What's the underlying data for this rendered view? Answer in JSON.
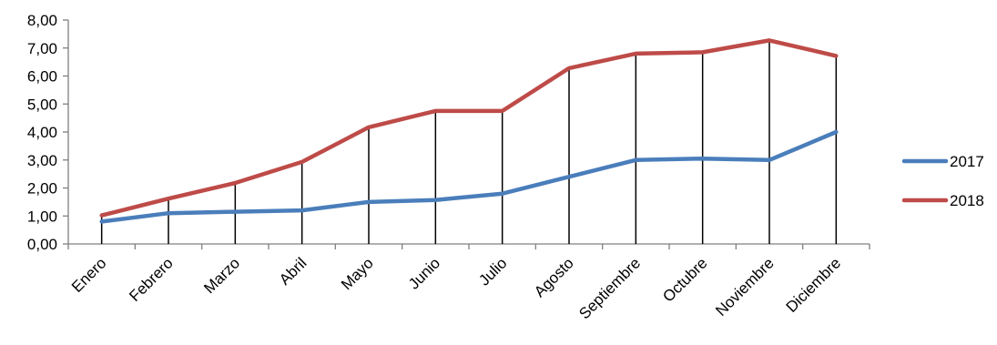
{
  "chart_data": {
    "type": "line",
    "categories": [
      "Enero",
      "Febrero",
      "Marzo",
      "Abril",
      "Mayo",
      "Junio",
      "Julio",
      "Agosto",
      "Septiembre",
      "Octubre",
      "Noviembre",
      "Diciembre"
    ],
    "series": [
      {
        "name": "2017",
        "color": "#4a7ebb",
        "values": [
          0.8,
          1.1,
          1.15,
          1.2,
          1.5,
          1.57,
          1.8,
          2.4,
          3.0,
          3.05,
          3.0,
          4.0
        ]
      },
      {
        "name": "2018",
        "color": "#be4b48",
        "values": [
          1.02,
          1.62,
          2.18,
          2.93,
          4.17,
          4.75,
          4.75,
          6.28,
          6.8,
          6.85,
          7.27,
          6.72
        ]
      }
    ],
    "yticks": [
      "0,00",
      "1,00",
      "2,00",
      "3,00",
      "4,00",
      "5,00",
      "6,00",
      "7,00",
      "8,00"
    ],
    "ylim": [
      0,
      8
    ],
    "high_low_lines": true,
    "legend_position": "right",
    "grid": false
  }
}
